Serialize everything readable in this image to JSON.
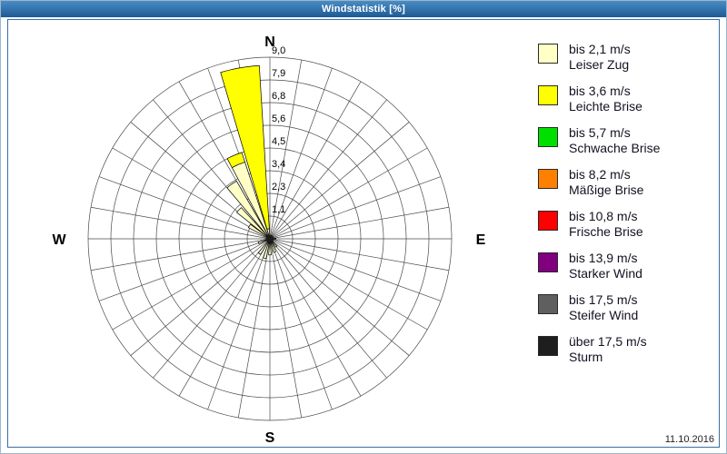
{
  "title": "Windstatistik [%]",
  "footer": {
    "date": "11.10.2016"
  },
  "legend": {
    "items": [
      {
        "speed": "bis 2,1 m/s",
        "name": "Leiser Zug",
        "color": "#FFFFC6"
      },
      {
        "speed": "bis 3,6 m/s",
        "name": "Leichte Brise",
        "color": "#FFFF00"
      },
      {
        "speed": "bis 5,7 m/s",
        "name": "Schwache Brise",
        "color": "#00E000"
      },
      {
        "speed": "bis 8,2 m/s",
        "name": "Mäßige Brise",
        "color": "#FF8000"
      },
      {
        "speed": "bis 10,8 m/s",
        "name": "Frische Brise",
        "color": "#FF0000"
      },
      {
        "speed": "bis 13,9 m/s",
        "name": "Starker Wind",
        "color": "#800080"
      },
      {
        "speed": "bis 17,5 m/s",
        "name": "Steifer Wind",
        "color": "#5F5F5F"
      },
      {
        "speed": "über 17,5 m/s",
        "name": "Sturm",
        "color": "#1E1E1E"
      }
    ]
  },
  "chart_data": {
    "type": "wind_rose",
    "title": "Windstatistik [%]",
    "units": "%",
    "compass": {
      "n": "N",
      "e": "E",
      "s": "S",
      "w": "W"
    },
    "ring_values": [
      1.1,
      2.3,
      3.4,
      4.5,
      5.6,
      6.8,
      7.9,
      9.0
    ],
    "ring_labels": [
      "1,1",
      "2,3",
      "3,4",
      "4,5",
      "5,6",
      "6,8",
      "7,9",
      "9,0"
    ],
    "max_value": 9.0,
    "sectors_deg": 10,
    "grid_spokes": 36,
    "center_dot_color": "#1C1C1C",
    "series": [
      {
        "name": "bis 2,1 m/s",
        "beaufort": "Leiser Zug",
        "color": "#FFFFC6"
      },
      {
        "name": "bis 3,6 m/s",
        "beaufort": "Leichte Brise",
        "color": "#FFFF00"
      },
      {
        "name": "bis 5,7 m/s",
        "beaufort": "Schwache Brise",
        "color": "#00E000"
      },
      {
        "name": "bis 8,2 m/s",
        "beaufort": "Mäßige Brise",
        "color": "#FF8000"
      },
      {
        "name": "bis 10,8 m/s",
        "beaufort": "Frische Brise",
        "color": "#FF0000"
      },
      {
        "name": "bis 13,9 m/s",
        "beaufort": "Starker Wind",
        "color": "#800080"
      },
      {
        "name": "bis 17,5 m/s",
        "beaufort": "Steifer Wind",
        "color": "#5F5F5F"
      },
      {
        "name": "über 17,5 m/s",
        "beaufort": "Sturm",
        "color": "#1E1E1E"
      }
    ],
    "petals": [
      {
        "dir_deg": 350,
        "width_deg": 13,
        "values": [
          0.5,
          8.1,
          0,
          0,
          0,
          0,
          0,
          0
        ]
      },
      {
        "dir_deg": 337,
        "width_deg": 10,
        "values": [
          4.0,
          0.5,
          0,
          0,
          0,
          0,
          0,
          0
        ]
      },
      {
        "dir_deg": 325,
        "width_deg": 10,
        "values": [
          3.3,
          0,
          0,
          0,
          0,
          0,
          0,
          0
        ]
      },
      {
        "dir_deg": 313,
        "width_deg": 9,
        "values": [
          2.1,
          0,
          0,
          0,
          0,
          0,
          0,
          0
        ]
      },
      {
        "dir_deg": 302,
        "width_deg": 9,
        "values": [
          1.2,
          0,
          0,
          0,
          0,
          0,
          0,
          0
        ]
      },
      {
        "dir_deg": 250,
        "width_deg": 9,
        "values": [
          0.6,
          0,
          0,
          0,
          0,
          0,
          0,
          0
        ]
      },
      {
        "dir_deg": 215,
        "width_deg": 9,
        "values": [
          0.9,
          0,
          0,
          0,
          0,
          0,
          0,
          0
        ]
      },
      {
        "dir_deg": 195,
        "width_deg": 9,
        "values": [
          1.0,
          0,
          0,
          0,
          0,
          0,
          0,
          0
        ]
      },
      {
        "dir_deg": 180,
        "width_deg": 9,
        "values": [
          0.8,
          0,
          0,
          0,
          0,
          0,
          0,
          0
        ]
      },
      {
        "dir_deg": 160,
        "width_deg": 9,
        "values": [
          0.7,
          0,
          0,
          0,
          0,
          0,
          0,
          0
        ]
      },
      {
        "dir_deg": 140,
        "width_deg": 9,
        "values": [
          0.5,
          0,
          0,
          0,
          0,
          0,
          0,
          0
        ]
      },
      {
        "dir_deg": 90,
        "width_deg": 9,
        "values": [
          0.3,
          0,
          0,
          0,
          0,
          0,
          0,
          0
        ]
      }
    ]
  }
}
